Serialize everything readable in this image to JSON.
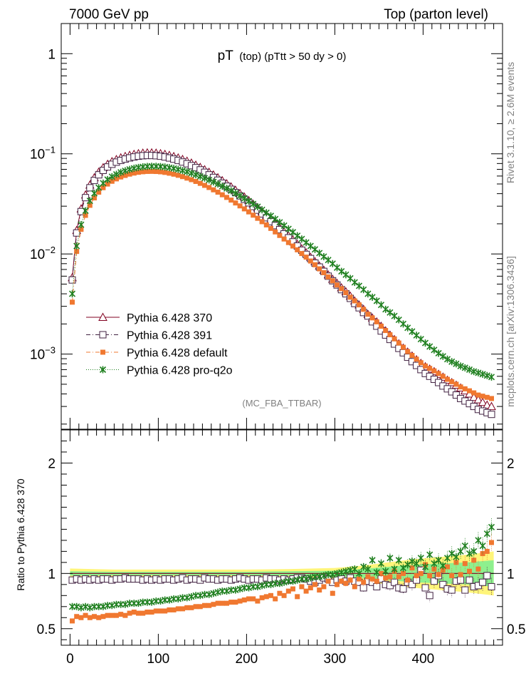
{
  "header": {
    "left": "7000 GeV pp",
    "right": "Top (parton level)"
  },
  "side_labels": {
    "top": "Rivet 3.1.10, ≥ 2.6M events",
    "bottom": "mcplots.cern.ch [arXiv:1306.3436]"
  },
  "chart_data": [
    {
      "type": "scatter",
      "panel": "main",
      "title_main": "pT",
      "title_sub": "(top) (pTtt > 50 dy > 0)",
      "watermark": "(MC_FBA_TTBAR)",
      "yscale": "log",
      "xlim": [
        -10,
        490
      ],
      "ylim": [
        0.0001778,
        2.0
      ],
      "y_ticks": [
        {
          "value": 1,
          "label": "1"
        },
        {
          "value": 0.1,
          "label": "10",
          "exp": "−1"
        },
        {
          "value": 0.01,
          "label": "10",
          "exp": "−2"
        },
        {
          "value": 0.001,
          "label": "10",
          "exp": "−3"
        }
      ],
      "x": [
        2.5,
        7.5,
        12.5,
        17.5,
        22.5,
        27.5,
        32.5,
        37.5,
        42.5,
        47.5,
        52.5,
        57.5,
        62.5,
        67.5,
        72.5,
        77.5,
        82.5,
        87.5,
        92.5,
        97.5,
        102.5,
        107.5,
        112.5,
        117.5,
        122.5,
        127.5,
        132.5,
        137.5,
        142.5,
        147.5,
        152.5,
        157.5,
        162.5,
        167.5,
        172.5,
        177.5,
        182.5,
        187.5,
        192.5,
        197.5,
        202.5,
        207.5,
        212.5,
        217.5,
        222.5,
        227.5,
        232.5,
        237.5,
        242.5,
        247.5,
        252.5,
        257.5,
        262.5,
        267.5,
        272.5,
        277.5,
        282.5,
        287.5,
        292.5,
        297.5,
        302.5,
        307.5,
        312.5,
        317.5,
        322.5,
        327.5,
        332.5,
        337.5,
        342.5,
        347.5,
        352.5,
        357.5,
        362.5,
        367.5,
        372.5,
        377.5,
        382.5,
        387.5,
        392.5,
        397.5,
        402.5,
        407.5,
        412.5,
        417.5,
        422.5,
        427.5,
        432.5,
        437.5,
        442.5,
        447.5,
        452.5,
        457.5,
        462.5,
        467.5,
        472.5,
        477.5
      ],
      "legend_position": "lower-left",
      "series": [
        {
          "name": "Pythia 6.428 370",
          "color": "#800020",
          "marker": "open-triangle",
          "line": "solid",
          "values": [
            0.0058,
            0.0172,
            0.0282,
            0.0389,
            0.0488,
            0.0578,
            0.0658,
            0.0728,
            0.0787,
            0.0837,
            0.0879,
            0.0914,
            0.0943,
            0.0968,
            0.0989,
            0.1006,
            0.1018,
            0.1024,
            0.1024,
            0.1018,
            0.1006,
            0.0989,
            0.0967,
            0.0941,
            0.0912,
            0.088,
            0.0846,
            0.081,
            0.0772,
            0.0734,
            0.0695,
            0.0655,
            0.0616,
            0.0578,
            0.054,
            0.0503,
            0.0468,
            0.0434,
            0.0402,
            0.0371,
            0.0342,
            0.0315,
            0.0289,
            0.0265,
            0.0242,
            0.0221,
            0.0202,
            0.0184,
            0.0167,
            0.0152,
            0.0138,
            0.0125,
            0.0113,
            0.0103,
            0.0093,
            0.0084,
            0.0076,
            0.0069,
            0.0062,
            0.0056,
            0.0051,
            0.0046,
            0.0042,
            0.0038,
            0.0034,
            0.0031,
            0.0028,
            0.0025,
            0.0023,
            0.0021,
            0.0019,
            0.00171,
            0.00155,
            0.0014,
            0.00127,
            0.00115,
            0.00105,
            0.00096,
            0.00088,
            0.00081,
            0.00075,
            0.00071,
            0.00067,
            0.00063,
            0.00059,
            0.00055,
            0.00052,
            0.00049,
            0.00046,
            0.00043,
            0.0004,
            0.00037,
            0.00035,
            0.00033,
            0.00031,
            0.0003
          ]
        },
        {
          "name": "Pythia 6.428 391",
          "color": "#402040",
          "marker": "open-square",
          "line": "dash-dot",
          "values": [
            0.0055,
            0.0162,
            0.0265,
            0.0365,
            0.0458,
            0.0542,
            0.0617,
            0.0683,
            0.0739,
            0.0786,
            0.0826,
            0.0859,
            0.0886,
            0.091,
            0.093,
            0.0946,
            0.0957,
            0.0962,
            0.0962,
            0.0957,
            0.0946,
            0.093,
            0.0909,
            0.0885,
            0.0858,
            0.0828,
            0.0796,
            0.0762,
            0.0727,
            0.0691,
            0.0654,
            0.0617,
            0.0581,
            0.0545,
            0.0509,
            0.0475,
            0.0442,
            0.041,
            0.038,
            0.0351,
            0.0324,
            0.0298,
            0.0274,
            0.0251,
            0.023,
            0.021,
            0.0192,
            0.0175,
            0.0159,
            0.0145,
            0.0132,
            0.012,
            0.0109,
            0.0099,
            0.009,
            0.0081,
            0.0074,
            0.0067,
            0.006,
            0.0054,
            0.0049,
            0.0044,
            0.004,
            0.0036,
            0.0032,
            0.0029,
            0.0026,
            0.0024,
            0.0021,
            0.0019,
            0.0017,
            0.00155,
            0.0014,
            0.00126,
            0.00114,
            0.00103,
            0.00093,
            0.00084,
            0.00077,
            0.0007,
            0.00064,
            0.0006,
            0.00056,
            0.00052,
            0.00048,
            0.00045,
            0.00042,
            0.00039,
            0.00036,
            0.00034,
            0.00032,
            0.0003,
            0.00028,
            0.00027,
            0.00026,
            0.00025
          ]
        },
        {
          "name": "Pythia 6.428 default",
          "color": "#f07830",
          "marker": "filled-square",
          "line": "dash-dot",
          "values": [
            0.0033,
            0.0106,
            0.0176,
            0.0243,
            0.0306,
            0.0363,
            0.0414,
            0.0459,
            0.0499,
            0.0532,
            0.0562,
            0.0587,
            0.0608,
            0.0627,
            0.0642,
            0.0654,
            0.0662,
            0.0667,
            0.0668,
            0.0666,
            0.0661,
            0.0652,
            0.064,
            0.0626,
            0.061,
            0.0592,
            0.0572,
            0.0552,
            0.053,
            0.0507,
            0.0484,
            0.0461,
            0.0437,
            0.0414,
            0.039,
            0.0367,
            0.0345,
            0.0323,
            0.0302,
            0.0282,
            0.0263,
            0.0244,
            0.0227,
            0.021,
            0.0195,
            0.018,
            0.0166,
            0.0153,
            0.0141,
            0.013,
            0.012,
            0.011,
            0.0101,
            0.0093,
            0.0085,
            0.0078,
            0.0071,
            0.0065,
            0.0059,
            0.0054,
            0.0049,
            0.0045,
            0.0041,
            0.0037,
            0.0034,
            0.0031,
            0.0028,
            0.0025,
            0.0023,
            0.0021,
            0.0019,
            0.00172,
            0.00156,
            0.00142,
            0.00129,
            0.00117,
            0.00106,
            0.00097,
            0.00089,
            0.00082,
            0.00076,
            0.00072,
            0.00068,
            0.00064,
            0.0006,
            0.00056,
            0.00053,
            0.0005,
            0.00047,
            0.00045,
            0.00043,
            0.00041,
            0.00039,
            0.00038,
            0.00037,
            0.00036
          ]
        },
        {
          "name": "Pythia 6.428 pro-q2o",
          "color": "#208020",
          "marker": "star",
          "line": "dotted",
          "values": [
            0.004,
            0.012,
            0.0196,
            0.027,
            0.0339,
            0.0403,
            0.0459,
            0.0509,
            0.0553,
            0.0591,
            0.0624,
            0.0653,
            0.0677,
            0.0699,
            0.0717,
            0.0731,
            0.0741,
            0.0748,
            0.0751,
            0.075,
            0.0746,
            0.0738,
            0.0727,
            0.0714,
            0.0698,
            0.068,
            0.0661,
            0.064,
            0.0618,
            0.0595,
            0.0572,
            0.0548,
            0.0524,
            0.05,
            0.0475,
            0.0451,
            0.0428,
            0.0404,
            0.0381,
            0.0359,
            0.0337,
            0.0316,
            0.0296,
            0.0276,
            0.0258,
            0.024,
            0.0223,
            0.0207,
            0.0192,
            0.0178,
            0.0165,
            0.0152,
            0.0141,
            0.013,
            0.012,
            0.0111,
            0.0102,
            0.0094,
            0.0087,
            0.008,
            0.0073,
            0.0067,
            0.0062,
            0.0057,
            0.0052,
            0.0048,
            0.0044,
            0.004,
            0.0037,
            0.0034,
            0.0031,
            0.0028,
            0.0026,
            0.0024,
            0.0022,
            0.002,
            0.00183,
            0.00168,
            0.00154,
            0.00141,
            0.00129,
            0.00119,
            0.0011,
            0.00102,
            0.00095,
            0.00089,
            0.00084,
            0.0008,
            0.00076,
            0.00073,
            0.0007,
            0.00067,
            0.00065,
            0.00063,
            0.00061,
            0.00059
          ]
        }
      ]
    },
    {
      "type": "scatter",
      "panel": "ratio",
      "ylabel": "Ratio to Pythia 6.428 370",
      "xlim": [
        -10,
        490
      ],
      "ylim": [
        0.35,
        2.3
      ],
      "x_ticks": [
        0,
        100,
        200,
        300,
        400
      ],
      "y_ticks": [
        0.5,
        1,
        2
      ],
      "y_tick_labels": [
        "0.5",
        "1",
        "2"
      ],
      "series": [
        {
          "name": "Pythia 6.428 391",
          "color": "#402040",
          "marker": "open-square",
          "values": [
            0.94,
            0.95,
            0.94,
            0.95,
            0.94,
            0.95,
            0.94,
            0.95,
            0.95,
            0.94,
            0.95,
            0.95,
            0.96,
            0.95,
            0.95,
            0.95,
            0.94,
            0.95,
            0.94,
            0.95,
            0.94,
            0.95,
            0.95,
            0.94,
            0.95,
            0.96,
            0.94,
            0.95,
            0.95,
            0.94,
            0.96,
            0.95,
            0.95,
            0.94,
            0.95,
            0.95,
            0.94,
            0.95,
            0.96,
            0.95,
            0.94,
            0.95,
            0.95,
            0.94,
            0.96,
            0.95,
            0.95,
            0.94,
            0.95,
            0.94,
            0.95,
            0.96,
            0.96,
            0.95,
            0.93,
            0.92,
            0.94,
            0.96,
            0.95,
            0.92,
            0.94,
            0.95,
            0.93,
            0.96,
            0.93,
            0.92,
            0.87,
            0.93,
            0.92,
            0.88,
            0.95,
            0.9,
            0.89,
            0.92,
            0.87,
            0.86,
            0.92,
            0.9,
            0.94,
            1.03,
            0.87,
            0.8,
            0.93,
            0.98,
            0.9,
            0.86,
            0.85,
            0.93,
            0.94,
            0.85,
            0.94,
            0.88,
            0.89,
            0.92,
            0.98,
            0.88
          ]
        },
        {
          "name": "Pythia 6.428 default",
          "color": "#f07830",
          "marker": "filled-square",
          "values": [
            0.57,
            0.61,
            0.6,
            0.62,
            0.6,
            0.61,
            0.6,
            0.61,
            0.62,
            0.62,
            0.62,
            0.63,
            0.62,
            0.64,
            0.65,
            0.64,
            0.64,
            0.65,
            0.65,
            0.66,
            0.66,
            0.66,
            0.67,
            0.67,
            0.68,
            0.68,
            0.69,
            0.69,
            0.7,
            0.7,
            0.71,
            0.71,
            0.72,
            0.73,
            0.73,
            0.73,
            0.74,
            0.74,
            0.75,
            0.76,
            0.77,
            0.77,
            0.75,
            0.78,
            0.79,
            0.8,
            0.77,
            0.82,
            0.8,
            0.84,
            0.86,
            0.79,
            0.88,
            0.84,
            0.87,
            0.9,
            0.85,
            0.88,
            0.93,
            0.82,
            0.9,
            0.93,
            0.91,
            0.94,
            0.88,
            0.95,
            0.92,
            0.97,
            0.95,
            0.93,
            1.0,
            0.96,
            0.97,
            1.02,
            0.97,
            1.0,
            0.94,
            1.05,
            0.98,
            1.0,
            1.08,
            0.98,
            1.04,
            0.99,
            1.03,
            1.06,
            0.98,
            1.1,
            0.99,
            1.09,
            1.02,
            1.12,
            1.04,
            1.18,
            1.2,
            1.28
          ]
        },
        {
          "name": "Pythia 6.428 pro-q2o",
          "color": "#208020",
          "marker": "star",
          "values": [
            0.7,
            0.7,
            0.69,
            0.7,
            0.69,
            0.7,
            0.7,
            0.7,
            0.71,
            0.71,
            0.72,
            0.72,
            0.72,
            0.73,
            0.73,
            0.73,
            0.74,
            0.74,
            0.74,
            0.75,
            0.75,
            0.76,
            0.76,
            0.77,
            0.77,
            0.78,
            0.78,
            0.79,
            0.8,
            0.8,
            0.81,
            0.81,
            0.82,
            0.83,
            0.84,
            0.84,
            0.85,
            0.85,
            0.86,
            0.87,
            0.87,
            0.88,
            0.88,
            0.89,
            0.9,
            0.9,
            0.91,
            0.91,
            0.92,
            0.93,
            0.93,
            0.94,
            0.95,
            0.95,
            0.96,
            0.97,
            0.97,
            0.98,
            0.99,
            0.99,
            1.0,
            1.01,
            1.02,
            1.03,
            1.04,
            1.0,
            1.06,
            1.04,
            1.12,
            1.01,
            1.09,
            1.02,
            1.14,
            1.04,
            1.12,
            1.05,
            1.08,
            1.11,
            1.09,
            1.14,
            1.06,
            1.17,
            1.09,
            1.12,
            1.07,
            1.14,
            1.18,
            1.15,
            1.2,
            1.25,
            1.18,
            1.2,
            1.3,
            1.25,
            1.36,
            1.42
          ]
        }
      ],
      "band": {
        "x": [
          0,
          50,
          100,
          150,
          200,
          250,
          300,
          330,
          360,
          390,
          420,
          450,
          480
        ],
        "green_half_width": [
          0.02,
          0.015,
          0.015,
          0.015,
          0.015,
          0.02,
          0.025,
          0.04,
          0.06,
          0.08,
          0.09,
          0.1,
          0.12
        ],
        "yellow_half_width": [
          0.045,
          0.035,
          0.035,
          0.035,
          0.035,
          0.04,
          0.05,
          0.07,
          0.1,
          0.13,
          0.15,
          0.17,
          0.2
        ]
      }
    }
  ]
}
